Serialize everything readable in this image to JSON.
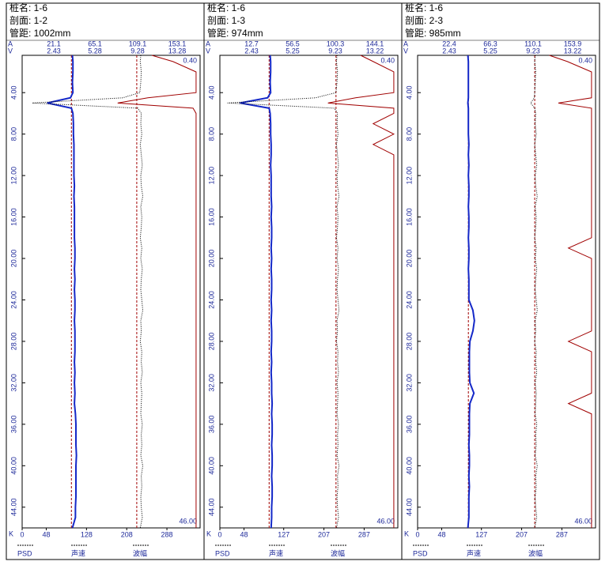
{
  "chart_data": [
    {
      "type": "line",
      "header": [
        "桩名: 1-6",
        "剖面: 1-2",
        "管距: 1002mm"
      ],
      "a_axis_name": "A",
      "a_labels": [
        21.1,
        65.1,
        109.1,
        153.1
      ],
      "v_axis_name": "V",
      "v_labels": [
        2.43,
        5.28,
        9.28,
        13.28
      ],
      "x_axis_name": "K",
      "xlim": [
        0,
        354
      ],
      "xticks": [
        0,
        48,
        128,
        208,
        288
      ],
      "ylim": [
        {
          "value": 0.4,
          "label": "0.40"
        },
        {
          "value": 46,
          "label": "46.00"
        }
      ],
      "yticks": [
        {
          "value": 4,
          "label": "4.00"
        },
        {
          "value": 8,
          "label": "8.00"
        },
        {
          "value": 12,
          "label": "12.00"
        },
        {
          "value": 16,
          "label": "16.00"
        },
        {
          "value": 20,
          "label": "20.00"
        },
        {
          "value": 24,
          "label": "24.00"
        },
        {
          "value": 28,
          "label": "28.00"
        },
        {
          "value": 32,
          "label": "32.00"
        },
        {
          "value": 36,
          "label": "36.00"
        },
        {
          "value": 40,
          "label": "40.00"
        },
        {
          "value": 44,
          "label": "44.00"
        }
      ],
      "depths": [
        0.4,
        1,
        2,
        3,
        4,
        4.5,
        5,
        5.5,
        6,
        7,
        8,
        9,
        10,
        11,
        12,
        13,
        14,
        15,
        16,
        17,
        18,
        19,
        20,
        21,
        22,
        23,
        24,
        25,
        26,
        27,
        28,
        29,
        30,
        31,
        32,
        33,
        34,
        35,
        36,
        37,
        38,
        39,
        40,
        41,
        42,
        43,
        44,
        45,
        46
      ],
      "critical_lines": [
        98,
        228
      ],
      "series": [
        {
          "name": "PSD",
          "color": "#a00000",
          "style": "solid",
          "values": [
            258,
            300,
            346,
            346,
            346,
            250,
            190,
            340,
            346,
            346,
            346,
            346,
            346,
            346,
            346,
            346,
            346,
            346,
            346,
            346,
            346,
            346,
            346,
            346,
            346,
            346,
            346,
            346,
            346,
            346,
            346,
            346,
            346,
            346,
            346,
            346,
            346,
            346,
            346,
            346,
            346,
            346,
            346,
            346,
            346,
            346,
            346,
            346,
            346
          ]
        },
        {
          "name": "声速",
          "color": "#1428c8",
          "style": "bold",
          "values": [
            100,
            101,
            101,
            100,
            101,
            96,
            50,
            98,
            101,
            102,
            102,
            103,
            103,
            103,
            103,
            104,
            103,
            104,
            104,
            104,
            104,
            105,
            105,
            104,
            105,
            104,
            105,
            105,
            104,
            105,
            105,
            105,
            104,
            105,
            104,
            105,
            104,
            106,
            107,
            107,
            107,
            108,
            107,
            107,
            107,
            107,
            106,
            106,
            100
          ]
        },
        {
          "name": "波幅",
          "color": "#000000",
          "style": "dotted",
          "values": [
            236,
            235,
            237,
            236,
            234,
            200,
            20,
            230,
            237,
            236,
            238,
            235,
            237,
            239,
            236,
            237,
            240,
            236,
            238,
            237,
            235,
            238,
            236,
            239,
            237,
            236,
            238,
            240,
            236,
            237,
            235,
            238,
            237,
            239,
            236,
            238,
            237,
            236,
            239,
            237,
            238,
            236,
            240,
            237,
            238,
            236,
            237,
            239,
            235
          ]
        }
      ]
    },
    {
      "type": "line",
      "header": [
        "桩名: 1-6",
        "剖面: 1-3",
        "管距: 974mm"
      ],
      "a_axis_name": "A",
      "a_labels": [
        12.7,
        56.5,
        100.3,
        144.1
      ],
      "v_axis_name": "V",
      "v_labels": [
        2.43,
        5.25,
        9.23,
        13.22
      ],
      "x_axis_name": "K",
      "xlim": [
        0,
        354
      ],
      "xticks": [
        0,
        48,
        127,
        207,
        287
      ],
      "ylim": [
        {
          "value": 0.4,
          "label": "0.40"
        },
        {
          "value": 46,
          "label": "46.00"
        }
      ],
      "yticks": [
        {
          "value": 4,
          "label": "4.00"
        },
        {
          "value": 8,
          "label": "8.00"
        },
        {
          "value": 12,
          "label": "12.00"
        },
        {
          "value": 16,
          "label": "16.00"
        },
        {
          "value": 20,
          "label": "20.00"
        },
        {
          "value": 24,
          "label": "24.00"
        },
        {
          "value": 28,
          "label": "28.00"
        },
        {
          "value": 32,
          "label": "32.00"
        },
        {
          "value": 36,
          "label": "36.00"
        },
        {
          "value": 40,
          "label": "40.00"
        },
        {
          "value": 44,
          "label": "44.00"
        }
      ],
      "depths": [
        0.4,
        1,
        2,
        3,
        4,
        4.5,
        5,
        5.5,
        6,
        7,
        8,
        9,
        10,
        11,
        12,
        13,
        14,
        15,
        16,
        17,
        18,
        19,
        20,
        21,
        22,
        23,
        24,
        25,
        26,
        27,
        28,
        29,
        30,
        31,
        32,
        33,
        34,
        35,
        36,
        37,
        38,
        39,
        40,
        41,
        42,
        43,
        44,
        45,
        46
      ],
      "critical_lines": [
        98,
        231
      ],
      "series": [
        {
          "name": "PSD",
          "color": "#a00000",
          "style": "solid",
          "values": [
            280,
            305,
            346,
            346,
            346,
            270,
            215,
            346,
            346,
            305,
            346,
            305,
            346,
            346,
            346,
            346,
            346,
            346,
            346,
            346,
            346,
            346,
            346,
            346,
            346,
            346,
            346,
            346,
            346,
            346,
            346,
            346,
            346,
            346,
            346,
            346,
            346,
            346,
            346,
            346,
            346,
            346,
            346,
            346,
            346,
            346,
            346,
            346,
            346
          ]
        },
        {
          "name": "声速",
          "color": "#1428c8",
          "style": "bold",
          "values": [
            100,
            101,
            101,
            100,
            101,
            95,
            40,
            98,
            100,
            101,
            101,
            102,
            102,
            101,
            102,
            102,
            102,
            103,
            102,
            103,
            103,
            102,
            103,
            102,
            103,
            103,
            102,
            103,
            102,
            103,
            103,
            102,
            103,
            102,
            103,
            103,
            104,
            103,
            104,
            104,
            103,
            104,
            104,
            103,
            104,
            104,
            103,
            103,
            102
          ]
        },
        {
          "name": "波幅",
          "color": "#000000",
          "style": "dotted",
          "values": [
            233,
            232,
            234,
            233,
            231,
            190,
            15,
            228,
            234,
            233,
            235,
            232,
            234,
            236,
            233,
            234,
            237,
            233,
            235,
            234,
            232,
            235,
            233,
            236,
            234,
            233,
            235,
            237,
            233,
            234,
            232,
            235,
            234,
            236,
            233,
            235,
            234,
            233,
            236,
            234,
            235,
            233,
            237,
            234,
            235,
            233,
            234,
            236,
            232
          ]
        }
      ]
    },
    {
      "type": "line",
      "header": [
        "桩名: 1-6",
        "剖面: 2-3",
        "管距: 985mm"
      ],
      "a_axis_name": "A",
      "a_labels": [
        22.4,
        66.3,
        110.1,
        153.9
      ],
      "v_axis_name": "V",
      "v_labels": [
        2.43,
        5.25,
        9.23,
        13.22
      ],
      "x_axis_name": "K",
      "xlim": [
        0,
        354
      ],
      "xticks": [
        0,
        48,
        127,
        207,
        287
      ],
      "ylim": [
        {
          "value": 0.4,
          "label": "0.40"
        },
        {
          "value": 46,
          "label": "46.00"
        }
      ],
      "yticks": [
        {
          "value": 4,
          "label": "4.00"
        },
        {
          "value": 8,
          "label": "8.00"
        },
        {
          "value": 12,
          "label": "12.00"
        },
        {
          "value": 16,
          "label": "16.00"
        },
        {
          "value": 20,
          "label": "20.00"
        },
        {
          "value": 24,
          "label": "24.00"
        },
        {
          "value": 28,
          "label": "28.00"
        },
        {
          "value": 32,
          "label": "32.00"
        },
        {
          "value": 36,
          "label": "36.00"
        },
        {
          "value": 40,
          "label": "40.00"
        },
        {
          "value": 44,
          "label": "44.00"
        }
      ],
      "depths": [
        0.4,
        1,
        2,
        3,
        4,
        4.5,
        5,
        5.5,
        6,
        7,
        8,
        9,
        10,
        11,
        12,
        13,
        14,
        15,
        16,
        17,
        18,
        19,
        20,
        21,
        22,
        23,
        24,
        25,
        26,
        27,
        28,
        29,
        30,
        31,
        32,
        33,
        34,
        35,
        36,
        37,
        38,
        39,
        40,
        41,
        42,
        43,
        44,
        45,
        46
      ],
      "critical_lines": [
        101,
        233
      ],
      "series": [
        {
          "name": "PSD",
          "color": "#a00000",
          "style": "solid",
          "values": [
            262,
            298,
            346,
            346,
            346,
            346,
            280,
            346,
            346,
            346,
            346,
            346,
            346,
            346,
            346,
            346,
            346,
            346,
            346,
            346,
            346,
            300,
            346,
            346,
            346,
            346,
            346,
            346,
            346,
            346,
            300,
            346,
            346,
            346,
            346,
            346,
            300,
            346,
            346,
            346,
            346,
            346,
            346,
            346,
            346,
            346,
            346,
            346,
            346
          ]
        },
        {
          "name": "声速",
          "color": "#1428c8",
          "style": "bold",
          "values": [
            100,
            101,
            101,
            101,
            101,
            101,
            100,
            101,
            101,
            101,
            101,
            102,
            101,
            102,
            101,
            102,
            102,
            101,
            102,
            102,
            101,
            102,
            102,
            101,
            102,
            102,
            102,
            110,
            113,
            110,
            104,
            103,
            103,
            103,
            104,
            112,
            104,
            103,
            103,
            103,
            102,
            103,
            103,
            102,
            103,
            102,
            102,
            102,
            100
          ]
        },
        {
          "name": "波幅",
          "color": "#000000",
          "style": "dotted",
          "values": [
            234,
            233,
            235,
            234,
            233,
            232,
            225,
            233,
            235,
            234,
            236,
            233,
            235,
            237,
            234,
            235,
            238,
            234,
            236,
            235,
            233,
            236,
            234,
            237,
            235,
            234,
            236,
            238,
            234,
            235,
            233,
            236,
            235,
            237,
            234,
            236,
            235,
            234,
            237,
            235,
            236,
            234,
            238,
            235,
            236,
            234,
            235,
            237,
            233
          ]
        }
      ]
    }
  ]
}
